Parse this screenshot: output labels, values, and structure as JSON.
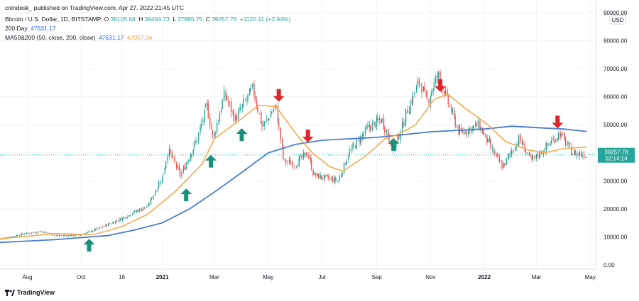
{
  "header": {
    "publisher_line": "coindesk_ published on TradingView.com, Apr 27, 2022 21:45 UTC",
    "symbol": "Bitcoin / U.S. Dollar, 1D, BITSTAMP",
    "ohlc": {
      "o_label": "O",
      "o": "38105.68",
      "h_label": "H",
      "h": "39494.73",
      "l_label": "L",
      "l": "37885.75",
      "c_label": "C",
      "c": "39257.78",
      "change": "+1120.11 (+2.94%)"
    },
    "ma200_label": "200 Day",
    "ma200_value": "47631.17",
    "ma_pair_label": "MA50&200 (50, close, 200, close)",
    "ma_pair_value1": "47631.17",
    "ma_pair_value2": "42057.34"
  },
  "currency_badge": "USD",
  "price_badge": {
    "price": "39257.78",
    "countdown": "02:14:14"
  },
  "footer": {
    "brand": "TradingView"
  },
  "colors": {
    "up": "#26a69a",
    "down": "#ef5350",
    "ma50": "#f7a541",
    "ma200": "#4a7bd0",
    "arrow_up": "#1a8f79",
    "arrow_down": "#e0252b"
  },
  "chart_data": {
    "type": "candlestick",
    "y_axis": {
      "min": 0,
      "max": 90000,
      "position": "right",
      "ticks": [
        {
          "v": 0,
          "label": "0.00"
        },
        {
          "v": 10000,
          "label": "10000.00"
        },
        {
          "v": 20000,
          "label": "20000.00"
        },
        {
          "v": 30000,
          "label": "30000.00"
        },
        {
          "v": 40000,
          "label": "40000.00"
        },
        {
          "v": 50000,
          "label": "50000.00"
        },
        {
          "v": 60000,
          "label": "60000.00"
        },
        {
          "v": 70000,
          "label": "70000.00"
        },
        {
          "v": 80000,
          "label": "80000.00"
        },
        {
          "v": 90000,
          "label": "90000.00"
        }
      ]
    },
    "x_axis": {
      "start": "2020-07-01",
      "end": "2022-05-08",
      "ticks": [
        {
          "date": "2020-08-01",
          "label": "Aug",
          "bold": false
        },
        {
          "date": "2020-10-01",
          "label": "Oct",
          "bold": false
        },
        {
          "date": "2020-11-16",
          "label": "16",
          "bold": false
        },
        {
          "date": "2021-01-01",
          "label": "2021",
          "bold": true
        },
        {
          "date": "2021-03-01",
          "label": "Mar",
          "bold": false
        },
        {
          "date": "2021-05-01",
          "label": "May",
          "bold": false
        },
        {
          "date": "2021-07-01",
          "label": "Jul",
          "bold": false
        },
        {
          "date": "2021-09-01",
          "label": "Sep",
          "bold": false
        },
        {
          "date": "2021-11-01",
          "label": "Nov",
          "bold": false
        },
        {
          "date": "2022-01-01",
          "label": "2022",
          "bold": true
        },
        {
          "date": "2022-03-01",
          "label": "Mar",
          "bold": false
        },
        {
          "date": "2022-05-01",
          "label": "May",
          "bold": false
        }
      ]
    },
    "last_price": 39257.78,
    "price_path": [
      [
        "2020-07-01",
        9200
      ],
      [
        "2020-07-27",
        11000
      ],
      [
        "2020-08-17",
        12000
      ],
      [
        "2020-09-05",
        10400
      ],
      [
        "2020-10-01",
        10700
      ],
      [
        "2020-10-21",
        13000
      ],
      [
        "2020-11-16",
        16500
      ],
      [
        "2020-12-01",
        19000
      ],
      [
        "2020-12-16",
        21000
      ],
      [
        "2021-01-02",
        32000
      ],
      [
        "2021-01-08",
        41000
      ],
      [
        "2021-01-22",
        32000
      ],
      [
        "2021-02-10",
        45000
      ],
      [
        "2021-02-21",
        57000
      ],
      [
        "2021-02-28",
        45000
      ],
      [
        "2021-03-13",
        61000
      ],
      [
        "2021-03-25",
        52000
      ],
      [
        "2021-04-14",
        63000
      ],
      [
        "2021-04-25",
        49000
      ],
      [
        "2021-05-10",
        57000
      ],
      [
        "2021-05-19",
        37000
      ],
      [
        "2021-06-01",
        36000
      ],
      [
        "2021-06-15",
        40000
      ],
      [
        "2021-06-22",
        32000
      ],
      [
        "2021-07-20",
        30000
      ],
      [
        "2021-08-01",
        40000
      ],
      [
        "2021-08-23",
        49000
      ],
      [
        "2021-09-07",
        52000
      ],
      [
        "2021-09-21",
        41000
      ],
      [
        "2021-10-06",
        55000
      ],
      [
        "2021-10-20",
        66000
      ],
      [
        "2021-10-28",
        58000
      ],
      [
        "2021-11-10",
        68000
      ],
      [
        "2021-11-26",
        54000
      ],
      [
        "2021-12-04",
        47000
      ],
      [
        "2021-12-26",
        50000
      ],
      [
        "2022-01-10",
        41000
      ],
      [
        "2022-01-22",
        35000
      ],
      [
        "2022-02-10",
        45000
      ],
      [
        "2022-02-24",
        37000
      ],
      [
        "2022-03-28",
        47000
      ],
      [
        "2022-04-11",
        40000
      ],
      [
        "2022-04-27",
        39257.78
      ]
    ],
    "ma50": [
      [
        "2020-07-01",
        9300
      ],
      [
        "2020-09-01",
        11200
      ],
      [
        "2020-10-15",
        10800
      ],
      [
        "2020-11-15",
        13500
      ],
      [
        "2020-12-15",
        18000
      ],
      [
        "2021-01-15",
        26000
      ],
      [
        "2021-02-15",
        36000
      ],
      [
        "2021-03-01",
        45000
      ],
      [
        "2021-03-31",
        52000
      ],
      [
        "2021-04-20",
        57000
      ],
      [
        "2021-05-10",
        56500
      ],
      [
        "2021-06-01",
        47000
      ],
      [
        "2021-06-20",
        40000
      ],
      [
        "2021-07-10",
        35000
      ],
      [
        "2021-07-25",
        33500
      ],
      [
        "2021-08-20",
        39000
      ],
      [
        "2021-09-10",
        45000
      ],
      [
        "2021-09-25",
        46500
      ],
      [
        "2021-10-15",
        50000
      ],
      [
        "2021-11-05",
        59000
      ],
      [
        "2021-11-20",
        61000
      ],
      [
        "2021-12-10",
        56000
      ],
      [
        "2022-01-05",
        50000
      ],
      [
        "2022-01-25",
        44000
      ],
      [
        "2022-02-20",
        41000
      ],
      [
        "2022-03-10",
        40000
      ],
      [
        "2022-04-01",
        41500
      ],
      [
        "2022-04-27",
        42057.34
      ]
    ],
    "ma200": [
      [
        "2020-07-01",
        8000
      ],
      [
        "2020-09-01",
        9000
      ],
      [
        "2020-11-01",
        10500
      ],
      [
        "2020-12-01",
        12500
      ],
      [
        "2021-01-01",
        15000
      ],
      [
        "2021-02-01",
        20000
      ],
      [
        "2021-03-01",
        26000
      ],
      [
        "2021-04-01",
        33000
      ],
      [
        "2021-05-01",
        40000
      ],
      [
        "2021-06-01",
        43000
      ],
      [
        "2021-07-01",
        44500
      ],
      [
        "2021-08-01",
        45000
      ],
      [
        "2021-09-01",
        45500
      ],
      [
        "2021-10-01",
        46500
      ],
      [
        "2021-11-01",
        47500
      ],
      [
        "2021-12-01",
        48000
      ],
      [
        "2022-01-01",
        48500
      ],
      [
        "2022-02-01",
        49500
      ],
      [
        "2022-03-01",
        49000
      ],
      [
        "2022-04-01",
        48500
      ],
      [
        "2022-04-27",
        47631.17
      ]
    ],
    "annotations": [
      {
        "type": "arrow-up",
        "date": "2020-10-10",
        "price": 7000
      },
      {
        "type": "arrow-up",
        "date": "2021-01-28",
        "price": 25000
      },
      {
        "type": "arrow-up",
        "date": "2021-02-25",
        "price": 37000
      },
      {
        "type": "arrow-up",
        "date": "2021-04-01",
        "price": 46500
      },
      {
        "type": "arrow-down",
        "date": "2021-05-13",
        "price": 60500
      },
      {
        "type": "arrow-down",
        "date": "2021-06-15",
        "price": 46000
      },
      {
        "type": "arrow-up",
        "date": "2021-09-20",
        "price": 43000
      },
      {
        "type": "arrow-down",
        "date": "2021-11-12",
        "price": 64000
      },
      {
        "type": "arrow-down",
        "date": "2022-03-25",
        "price": 51000
      }
    ]
  }
}
